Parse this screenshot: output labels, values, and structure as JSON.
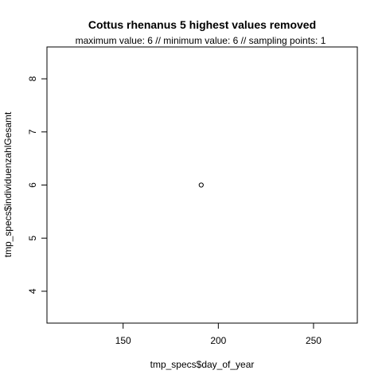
{
  "chart_data": {
    "type": "scatter",
    "title": "Cottus rhenanus  5 highest values removed",
    "subtitle": "maximum value: 6  //  minimum value: 6  // sampling points: 1",
    "xlabel": "tmp_specs$day_of_year",
    "ylabel": "tmp_specs$individuenzahlGesamt",
    "xlim": [
      110,
      273
    ],
    "ylim": [
      3.4,
      8.6
    ],
    "x_ticks": [
      "150",
      "200",
      "250"
    ],
    "y_ticks": [
      "4",
      "5",
      "6",
      "7",
      "8"
    ],
    "points": [
      {
        "x": 191,
        "y": 6
      }
    ],
    "grid": false,
    "legend": "none",
    "colors": {
      "axis": "#000000",
      "point": "#000000",
      "background": "#ffffff"
    }
  }
}
